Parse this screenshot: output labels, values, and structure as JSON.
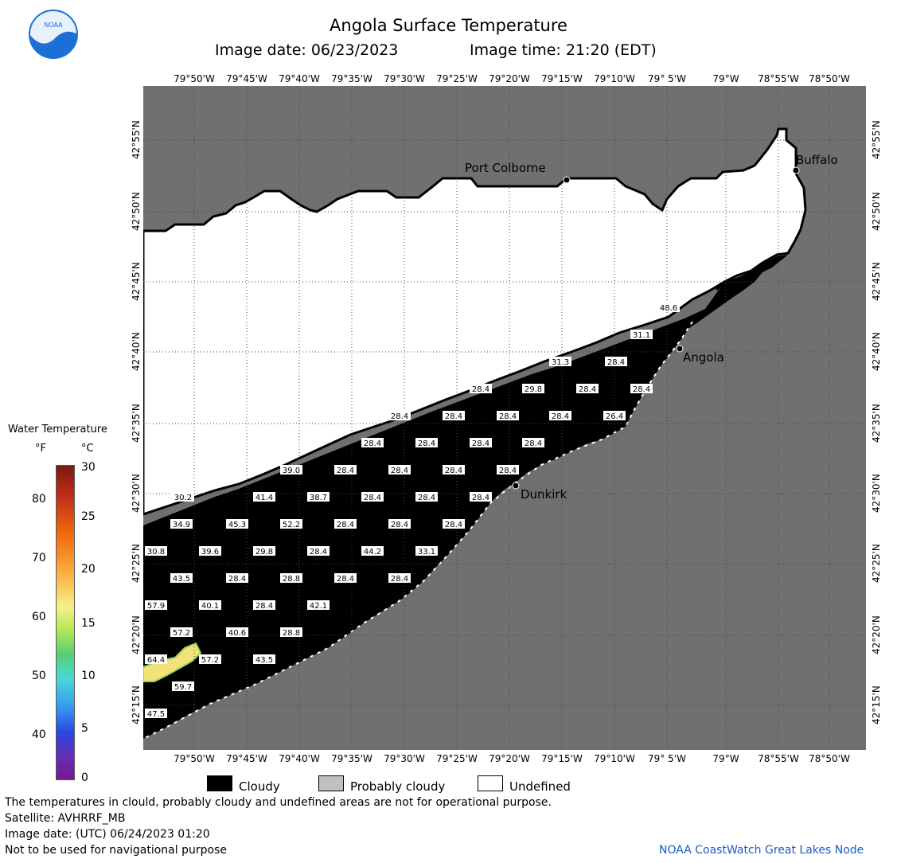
{
  "header": {
    "title": "Angola Surface Temperature",
    "image_date": "Image date: 06/23/2023",
    "image_time": "Image time: 21:20 (EDT)"
  },
  "axes": {
    "lon_labels": [
      "79°50'W",
      "79°45'W",
      "79°40'W",
      "79°35'W",
      "79°30'W",
      "79°25'W",
      "79°20'W",
      "79°15'W",
      "79°10'W",
      "79° 5'W",
      "79°W",
      "78°55'W",
      "78°50'W"
    ],
    "lat_labels": [
      "42°55'N",
      "42°50'N",
      "42°45'N",
      "42°40'N",
      "42°35'N",
      "42°30'N",
      "42°25'N",
      "42°20'N",
      "42°15'N"
    ]
  },
  "places": [
    {
      "name": "Port Colborne"
    },
    {
      "name": "Buffalo"
    },
    {
      "name": "Angola"
    },
    {
      "name": "Dunkirk"
    }
  ],
  "temperature_labels": [
    "48.6",
    "31.1",
    "31.3",
    "28.4",
    "28.4",
    "29.8",
    "28.4",
    "28.4",
    "28.4",
    "28.4",
    "28.4",
    "28.4",
    "26.4",
    "28.4",
    "28.4",
    "28.4",
    "28.4",
    "39.0",
    "28.4",
    "28.4",
    "28.4",
    "28.4",
    "30.2",
    "41.4",
    "38.7",
    "28.4",
    "28.4",
    "28.4",
    "34.9",
    "45.3",
    "52.2",
    "28.4",
    "28.4",
    "28.4",
    "30.8",
    "39.6",
    "29.8",
    "28.4",
    "44.2",
    "33.1",
    "43.5",
    "28.4",
    "28.8",
    "28.4",
    "28.4",
    "57.9",
    "40.1",
    "28.4",
    "42.1",
    "57.2",
    "40.6",
    "28.8",
    "64.4",
    "57.2",
    "43.5",
    "59.7",
    "47.5"
  ],
  "scale": {
    "title": "Water Temperature",
    "unit_f": "°F",
    "unit_c": "°C",
    "f_ticks": [
      "80",
      "70",
      "60",
      "50",
      "40"
    ],
    "c_ticks": [
      "30",
      "25",
      "20",
      "15",
      "10",
      "5",
      "0"
    ]
  },
  "legend": {
    "cloudy": "Cloudy",
    "probably_cloudy": "Probably cloudy",
    "undefined": "Undefined",
    "colors": {
      "cloudy": "#000000",
      "probably_cloudy": "#c0c0c0",
      "undefined": "#ffffff",
      "land": "#707070"
    }
  },
  "footer": {
    "line1": "The temperatures in clould, probably cloudy and undefined areas are not for operational purpose.",
    "line2": "Satellite: AVHRRF_MB",
    "line3": "Image date: (UTC) 06/24/2023  01:20",
    "line4": "Not to be used for navigational purpose",
    "credit": "NOAA CoastWatch Great Lakes Node"
  },
  "logo": {
    "text": "NOAA"
  }
}
